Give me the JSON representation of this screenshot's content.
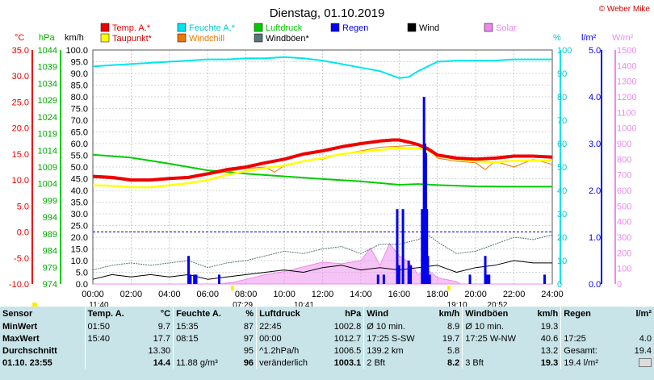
{
  "title": "Dienstag, 01.10.2019",
  "copyright": "© Weber Mike",
  "colors": {
    "temp": "#ee0000",
    "humidity": "#00e5ee",
    "pressure": "#00cc00",
    "rain": "#0000ee",
    "wind": "#000000",
    "solar": "#ee88ee",
    "dewpoint": "#ffff00",
    "windchill": "#ee7700",
    "gust": "#557777",
    "grid": "#999999",
    "marker": "#ffee00"
  },
  "legend": [
    {
      "key": "temp",
      "label": "Temp. A.*",
      "color": "#ee0000"
    },
    {
      "key": "humidity",
      "label": "Feuchte A.*",
      "color": "#00e5ee"
    },
    {
      "key": "pressure",
      "label": "Luftdruck",
      "color": "#00cc00"
    },
    {
      "key": "rain",
      "label": "Regen",
      "color": "#0000ee"
    },
    {
      "key": "wind",
      "label": "Wind",
      "color": "#000000"
    },
    {
      "key": "solar",
      "label": "Solar",
      "color": "#ee88ee"
    },
    {
      "key": "dewpoint",
      "label": "Taupunkt*",
      "color": "#ffff00"
    },
    {
      "key": "windchill",
      "label": "Windchill",
      "color": "#ee7700"
    },
    {
      "key": "gust",
      "label": "Windböen*",
      "color": "#557777"
    }
  ],
  "axis_units": {
    "celsius": "°C",
    "hpa": "hPa",
    "kmh": "km/h",
    "percent": "%",
    "rain": "l/m²",
    "solar": "W/m²"
  },
  "axes": {
    "celsius": [
      "35.0",
      "30.0",
      "25.0",
      "20.0",
      "15.0",
      "10.0",
      "5.0",
      "0.0",
      "-5.0",
      "-10.0"
    ],
    "hpa": [
      "1044",
      "1039",
      "1034",
      "1029",
      "1024",
      "1019",
      "1014",
      "1009",
      "1004",
      "999",
      "994",
      "989",
      "984",
      "979",
      "974"
    ],
    "kmh": [
      "100.0",
      "95.0",
      "90.0",
      "85.0",
      "80.0",
      "75.0",
      "70.0",
      "65.0",
      "60.0",
      "55.0",
      "50.0",
      "45.0",
      "40.0",
      "35.0",
      "30.0",
      "25.0",
      "20.0",
      "15.0",
      "10.0",
      "5.0",
      "0.0"
    ],
    "percent": [
      "100",
      "90",
      "80",
      "70",
      "60",
      "50",
      "40",
      "30",
      "20",
      "10",
      "0"
    ],
    "rain": [
      "5.0",
      "4.0",
      "3.0",
      "2.0",
      "1.0",
      "0.0"
    ],
    "solar": [
      "1500",
      "1400",
      "1300",
      "1200",
      "1100",
      "1000",
      "900",
      "800",
      "700",
      "600",
      "500",
      "400",
      "300",
      "200",
      "100",
      "0"
    ],
    "time": [
      "00:00",
      "02:00",
      "04:00",
      "06:00",
      "08:00",
      "10:00",
      "12:00",
      "14:00",
      "16:00",
      "18:00",
      "20:00",
      "22:00",
      "24:00"
    ]
  },
  "sun_labels": [
    {
      "text": "11:40",
      "x_hour": -0.2,
      "row": 0
    },
    {
      "text": "07:29",
      "x_hour": 7.3,
      "row": 0
    },
    {
      "text": "10:41",
      "x_hour": 10.5,
      "row": 0
    },
    {
      "text": "19:10",
      "x_hour": 18.5,
      "row": 0
    },
    {
      "text": "20:52",
      "x_hour": 20.6,
      "row": 0
    }
  ],
  "chart_data": {
    "type": "line",
    "xlabel": "",
    "x_unit": "hour",
    "xlim": [
      0,
      24
    ],
    "grid": true,
    "series": [
      {
        "name": "Temp. A.*",
        "axis": "celsius",
        "ylim": [
          -10,
          35
        ],
        "x": [
          0,
          1,
          2,
          3,
          4,
          5,
          6,
          7,
          8,
          9,
          10,
          11,
          12,
          13,
          14,
          15,
          15.67,
          16,
          16.5,
          17,
          17.5,
          18,
          19,
          20,
          21,
          22,
          23,
          24
        ],
        "y": [
          10.7,
          10.5,
          10.0,
          10.0,
          10.3,
          10.5,
          11.2,
          12.0,
          12.5,
          13.3,
          14.0,
          15.0,
          15.6,
          16.4,
          17.0,
          17.5,
          17.7,
          17.7,
          17.3,
          16.8,
          16.0,
          14.8,
          14.2,
          14.0,
          14.2,
          14.6,
          14.6,
          14.4
        ]
      },
      {
        "name": "Taupunkt*",
        "axis": "celsius",
        "ylim": [
          -10,
          35
        ],
        "x": [
          0,
          1,
          2,
          3,
          4,
          5,
          6,
          7,
          8,
          9,
          10,
          11,
          12,
          13,
          14,
          15,
          16,
          17,
          17.5,
          18,
          19,
          20,
          21,
          22,
          23,
          24
        ],
        "y": [
          9.0,
          8.9,
          8.6,
          8.6,
          9.0,
          9.4,
          10.0,
          11.0,
          11.7,
          12.3,
          12.8,
          13.6,
          14.2,
          15.0,
          15.4,
          15.8,
          16.1,
          16.1,
          15.7,
          14.6,
          14.0,
          13.6,
          13.4,
          13.7,
          13.8,
          13.7
        ]
      },
      {
        "name": "Windchill",
        "axis": "celsius",
        "ylim": [
          -10,
          35
        ],
        "x": [
          0,
          2,
          4,
          6,
          8,
          9,
          9.5,
          10,
          11,
          12,
          13,
          14,
          15,
          16,
          17,
          17.5,
          18,
          19,
          20,
          20.5,
          21,
          22,
          23,
          24
        ],
        "y": [
          10.5,
          9.9,
          10.2,
          11.0,
          12.2,
          12.5,
          11.5,
          12.8,
          13.7,
          14.0,
          15.0,
          15.6,
          16.3,
          16.5,
          16.7,
          16.0,
          14.2,
          13.6,
          13.3,
          12.0,
          13.6,
          12.5,
          14.0,
          13.0
        ]
      },
      {
        "name": "Luftdruck",
        "axis": "hpa",
        "ylim": [
          974,
          1044
        ],
        "x": [
          0,
          2,
          4,
          6,
          8,
          10,
          12,
          14,
          16,
          17,
          18,
          20,
          22,
          24
        ],
        "y": [
          1012.7,
          1011.8,
          1010.0,
          1008.0,
          1007.0,
          1006.2,
          1005.4,
          1004.7,
          1003.7,
          1003.9,
          1003.6,
          1003.2,
          1003.1,
          1003.1
        ]
      },
      {
        "name": "Feuchte A.*",
        "axis": "percent",
        "ylim": [
          0,
          100
        ],
        "x": [
          0,
          1,
          2,
          3,
          4,
          5,
          6,
          7,
          8,
          9,
          10,
          11,
          12,
          13,
          14,
          15,
          15.5,
          16,
          16.5,
          17,
          17.5,
          18,
          19,
          20,
          21,
          22,
          23,
          24
        ],
        "y": [
          93,
          93.5,
          94,
          94.5,
          95,
          95.5,
          96,
          96,
          96.5,
          96.5,
          97,
          96.5,
          95.5,
          94,
          92.5,
          91,
          89.5,
          88,
          88.5,
          91,
          93,
          95,
          95.5,
          95.5,
          95.5,
          96,
          96,
          96
        ]
      },
      {
        "name": "Wind",
        "axis": "kmh",
        "ylim": [
          0,
          100
        ],
        "x": [
          0,
          1,
          2,
          3,
          4,
          5,
          6,
          7,
          8,
          9,
          10,
          11,
          12,
          13,
          14,
          15,
          16,
          17,
          18,
          19,
          20,
          21,
          22,
          23,
          24
        ],
        "y": [
          2,
          4,
          3,
          4,
          3,
          4,
          2,
          3,
          4,
          5,
          6,
          5,
          7,
          8,
          6,
          7,
          6,
          7,
          8,
          5,
          7,
          8,
          10,
          9,
          9
        ]
      },
      {
        "name": "Windböen*",
        "axis": "kmh",
        "ylim": [
          0,
          100
        ],
        "x": [
          0,
          1,
          2,
          3,
          4,
          5,
          6,
          7,
          8,
          9,
          10,
          11,
          12,
          13,
          14,
          15,
          16,
          17,
          17.5,
          18,
          19,
          20,
          21,
          22,
          23,
          24
        ],
        "y": [
          6,
          8,
          9,
          8,
          9,
          10,
          7,
          9,
          10,
          12,
          14,
          13,
          15,
          16,
          13,
          17,
          17,
          19,
          21,
          18,
          13,
          14,
          17,
          20,
          19,
          21
        ]
      },
      {
        "name": "Solar",
        "axis": "solar",
        "ylim": [
          0,
          1500
        ],
        "x": [
          0,
          6.5,
          7.3,
          8,
          9,
          10,
          11,
          12,
          13,
          14,
          14.5,
          15,
          15.5,
          16,
          16.5,
          17,
          17.5,
          18,
          19,
          19.2,
          24
        ],
        "y": [
          0,
          0,
          10,
          30,
          60,
          80,
          110,
          140,
          130,
          150,
          230,
          120,
          260,
          180,
          140,
          60,
          90,
          40,
          15,
          0,
          0
        ]
      },
      {
        "name": "Regen",
        "axis": "rain",
        "ylim": [
          0,
          5
        ],
        "type": "bar",
        "x": [
          5.0,
          5.1,
          5.3,
          5.4,
          6.6,
          14.9,
          15.2,
          15.9,
          16.0,
          16.2,
          16.5,
          16.6,
          17.2,
          17.3,
          17.35,
          17.4,
          17.45,
          17.5,
          17.6,
          19.7,
          20.5,
          20.6,
          20.7,
          23.6
        ],
        "y": [
          0.6,
          0.2,
          0.2,
          0.2,
          0.2,
          0.2,
          0.2,
          1.6,
          0.4,
          1.6,
          0.5,
          0.4,
          1.6,
          4.0,
          3.0,
          2.8,
          1.6,
          0.6,
          0.2,
          0.2,
          0.6,
          0.2,
          0.2,
          0.2
        ]
      }
    ]
  },
  "table": {
    "headers": [
      {
        "label": "Sensor",
        "unit": ""
      },
      {
        "label": "Temp. A.",
        "unit": "°C"
      },
      {
        "label": "Feuchte A.",
        "unit": "%"
      },
      {
        "label": "Luftdruck",
        "unit": "hPa"
      },
      {
        "label": "Wind",
        "unit": "km/h"
      },
      {
        "label": "Windböen",
        "unit": "km/h"
      },
      {
        "label": "Regen",
        "unit": "l/m²"
      }
    ],
    "rows": [
      {
        "label": "MinWert",
        "cells": [
          [
            "01:50",
            "9.7"
          ],
          [
            "15:35",
            "87"
          ],
          [
            "22:45",
            "1002.8"
          ],
          [
            "Ø 10 min.",
            "8.9"
          ],
          [
            "Ø 10 min.",
            "19.3"
          ],
          [
            "",
            ""
          ]
        ]
      },
      {
        "label": "MaxWert",
        "cells": [
          [
            "15:40",
            "17.7"
          ],
          [
            "08:15",
            "97"
          ],
          [
            "00:00",
            "1012.7"
          ],
          [
            "17:25  S-SW",
            "19.7"
          ],
          [
            "17:25  W-NW",
            "40.6"
          ],
          [
            "17:25",
            "4.0"
          ]
        ]
      },
      {
        "label": "Durchschnitt",
        "cells": [
          [
            "",
            "13.30"
          ],
          [
            "",
            "95"
          ],
          [
            "^1.2hPa/h",
            "1006.5"
          ],
          [
            "139.2 km",
            "5.8"
          ],
          [
            "",
            "13.2"
          ],
          [
            "Gesamt:",
            "19.4"
          ]
        ]
      },
      {
        "label": "01.10. 23:55",
        "cells": [
          [
            "",
            "14.4"
          ],
          [
            "11.88 g/m³",
            "96"
          ],
          [
            "veränderlich",
            "1003.1"
          ],
          [
            "2 Bft",
            "8.2"
          ],
          [
            "3 Bft",
            "19.3"
          ],
          [
            "19.4 l/m²",
            ""
          ]
        ]
      }
    ]
  }
}
